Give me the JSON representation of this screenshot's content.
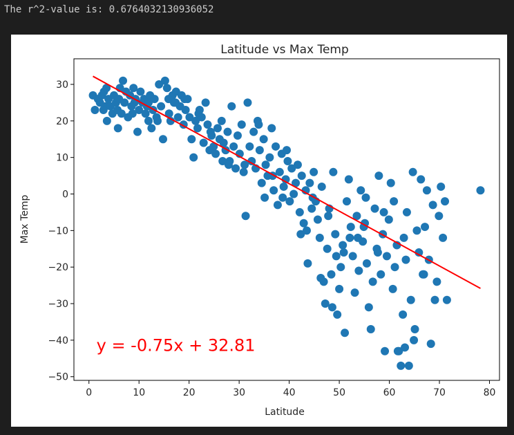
{
  "output": {
    "text": "The r^2-value is: 0.6764032130936052"
  },
  "chart_data": {
    "type": "scatter",
    "title": "Latitude vs Max Temp",
    "xlabel": "Latitude",
    "ylabel": "Max Temp",
    "xlim": [
      -3,
      82
    ],
    "ylim": [
      -51,
      37
    ],
    "xticks": [
      0,
      10,
      20,
      30,
      40,
      50,
      60,
      70,
      80
    ],
    "yticks": [
      -50,
      -40,
      -30,
      -20,
      -10,
      0,
      10,
      20,
      30
    ],
    "grid": false,
    "point_color": "#1f77b4",
    "regression": {
      "slope": -0.75,
      "intercept": 32.81,
      "x_range": [
        0.8,
        78.2
      ],
      "color": "#ff0000"
    },
    "annotation": {
      "text": "y = -0.75x + 32.81",
      "x": 1.5,
      "y": -43,
      "color": "#ff0000"
    },
    "points": [
      [
        0.8,
        27
      ],
      [
        1.2,
        23
      ],
      [
        1.8,
        26
      ],
      [
        2.2,
        25
      ],
      [
        2.6,
        27
      ],
      [
        3.0,
        28
      ],
      [
        3.3,
        24
      ],
      [
        3.6,
        20
      ],
      [
        3.9,
        26
      ],
      [
        4.3,
        24
      ],
      [
        4.7,
        22
      ],
      [
        5.0,
        27
      ],
      [
        5.4,
        25
      ],
      [
        5.7,
        23
      ],
      [
        6.0,
        26
      ],
      [
        6.2,
        29
      ],
      [
        6.5,
        22
      ],
      [
        6.8,
        31
      ],
      [
        7.1,
        25
      ],
      [
        7.4,
        28
      ],
      [
        7.8,
        21
      ],
      [
        8.2,
        27
      ],
      [
        8.5,
        24
      ],
      [
        8.9,
        29
      ],
      [
        9.3,
        26
      ],
      [
        9.7,
        17
      ],
      [
        10.0,
        23
      ],
      [
        10.3,
        28
      ],
      [
        10.7,
        25
      ],
      [
        11.0,
        26
      ],
      [
        11.3,
        22
      ],
      [
        11.6,
        24
      ],
      [
        11.9,
        20
      ],
      [
        12.2,
        27
      ],
      [
        12.5,
        18
      ],
      [
        12.8,
        23
      ],
      [
        13.1,
        26
      ],
      [
        13.5,
        21
      ],
      [
        14.0,
        30
      ],
      [
        14.4,
        24
      ],
      [
        14.8,
        15
      ],
      [
        15.2,
        31
      ],
      [
        15.6,
        29
      ],
      [
        16.0,
        22
      ],
      [
        16.3,
        20
      ],
      [
        16.7,
        27
      ],
      [
        17.0,
        25
      ],
      [
        17.4,
        28
      ],
      [
        17.8,
        21
      ],
      [
        18.2,
        24
      ],
      [
        18.5,
        27
      ],
      [
        18.9,
        19
      ],
      [
        19.3,
        23
      ],
      [
        19.7,
        26
      ],
      [
        20.1,
        21
      ],
      [
        20.5,
        15
      ],
      [
        20.9,
        10
      ],
      [
        21.3,
        20
      ],
      [
        21.7,
        18
      ],
      [
        22.1,
        23
      ],
      [
        22.5,
        21
      ],
      [
        22.9,
        14
      ],
      [
        23.3,
        25
      ],
      [
        23.7,
        19
      ],
      [
        24.1,
        12
      ],
      [
        24.5,
        16
      ],
      [
        24.9,
        13
      ],
      [
        25.3,
        11
      ],
      [
        25.7,
        18
      ],
      [
        26.1,
        15
      ],
      [
        26.5,
        20
      ],
      [
        26.9,
        14
      ],
      [
        27.3,
        12
      ],
      [
        27.7,
        17
      ],
      [
        28.1,
        9
      ],
      [
        28.5,
        24
      ],
      [
        28.9,
        13
      ],
      [
        29.3,
        7
      ],
      [
        29.7,
        16
      ],
      [
        30.1,
        11
      ],
      [
        30.5,
        19
      ],
      [
        30.9,
        6
      ],
      [
        31.3,
        -6
      ],
      [
        31.7,
        25
      ],
      [
        32.1,
        13
      ],
      [
        32.5,
        9
      ],
      [
        32.9,
        17
      ],
      [
        33.3,
        7
      ],
      [
        33.7,
        20
      ],
      [
        34.1,
        12
      ],
      [
        34.5,
        3
      ],
      [
        34.9,
        15
      ],
      [
        35.3,
        8
      ],
      [
        35.7,
        5
      ],
      [
        36.1,
        10
      ],
      [
        36.5,
        18
      ],
      [
        36.9,
        1
      ],
      [
        37.3,
        13
      ],
      [
        37.7,
        -3
      ],
      [
        38.1,
        6
      ],
      [
        38.5,
        11
      ],
      [
        38.9,
        2
      ],
      [
        39.3,
        4
      ],
      [
        39.7,
        9
      ],
      [
        40.1,
        -2
      ],
      [
        40.5,
        7
      ],
      [
        40.9,
        0
      ],
      [
        41.3,
        3
      ],
      [
        41.7,
        8
      ],
      [
        42.1,
        -5
      ],
      [
        42.5,
        5
      ],
      [
        42.9,
        -8
      ],
      [
        43.3,
        1
      ],
      [
        43.7,
        -19
      ],
      [
        44.1,
        3
      ],
      [
        44.5,
        -4
      ],
      [
        44.9,
        6
      ],
      [
        45.3,
        -2
      ],
      [
        45.7,
        -7
      ],
      [
        46.1,
        -12
      ],
      [
        46.5,
        2
      ],
      [
        46.9,
        -24
      ],
      [
        47.2,
        -30
      ],
      [
        47.6,
        -15
      ],
      [
        48.0,
        -4
      ],
      [
        48.4,
        -22
      ],
      [
        48.8,
        6
      ],
      [
        49.2,
        -11
      ],
      [
        49.6,
        -33
      ],
      [
        50.0,
        -26
      ],
      [
        50.3,
        -20
      ],
      [
        50.7,
        -14
      ],
      [
        51.1,
        -38
      ],
      [
        51.5,
        -2
      ],
      [
        51.9,
        4
      ],
      [
        52.3,
        -9
      ],
      [
        52.7,
        -17
      ],
      [
        53.1,
        -27
      ],
      [
        53.5,
        -6
      ],
      [
        53.9,
        -21
      ],
      [
        54.3,
        1
      ],
      [
        54.7,
        -13
      ],
      [
        55.1,
        -8
      ],
      [
        55.5,
        -19
      ],
      [
        55.9,
        -31
      ],
      [
        56.3,
        -37
      ],
      [
        56.7,
        -24
      ],
      [
        57.1,
        -4
      ],
      [
        57.5,
        -15
      ],
      [
        57.9,
        5
      ],
      [
        58.3,
        -22
      ],
      [
        58.7,
        -11
      ],
      [
        59.1,
        -43
      ],
      [
        59.5,
        -17
      ],
      [
        59.9,
        -7
      ],
      [
        60.3,
        3
      ],
      [
        60.7,
        -26
      ],
      [
        61.1,
        -20
      ],
      [
        61.5,
        -14
      ],
      [
        61.9,
        -43
      ],
      [
        62.3,
        -47
      ],
      [
        62.7,
        -33
      ],
      [
        63.1,
        -42
      ],
      [
        63.5,
        -5
      ],
      [
        63.9,
        -47
      ],
      [
        64.3,
        -29
      ],
      [
        64.7,
        6
      ],
      [
        65.1,
        -37
      ],
      [
        65.5,
        -10
      ],
      [
        65.9,
        -16
      ],
      [
        66.3,
        4
      ],
      [
        66.7,
        -22
      ],
      [
        67.1,
        -9
      ],
      [
        67.5,
        1
      ],
      [
        67.9,
        -18
      ],
      [
        68.3,
        -41
      ],
      [
        68.7,
        -3
      ],
      [
        69.1,
        -29
      ],
      [
        69.5,
        -24
      ],
      [
        69.9,
        -6
      ],
      [
        70.3,
        2
      ],
      [
        70.7,
        -12
      ],
      [
        71.1,
        -2
      ],
      [
        71.5,
        -29
      ],
      [
        78.2,
        1
      ],
      [
        3.5,
        29
      ],
      [
        9.1,
        25
      ],
      [
        15.9,
        26
      ],
      [
        24.3,
        17
      ],
      [
        33.9,
        19
      ],
      [
        39.5,
        12
      ],
      [
        46.3,
        -23
      ],
      [
        52.1,
        -12
      ],
      [
        57.7,
        -16
      ],
      [
        63.3,
        -18
      ],
      [
        48.6,
        -31
      ],
      [
        53.7,
        -12
      ],
      [
        50.9,
        -16
      ],
      [
        42.3,
        -11
      ],
      [
        44.7,
        -1
      ],
      [
        36.7,
        5
      ],
      [
        27.9,
        8
      ],
      [
        19.1,
        26
      ],
      [
        11.9,
        25
      ],
      [
        5.8,
        18
      ],
      [
        60.9,
        -2
      ],
      [
        66.9,
        -22
      ],
      [
        58.9,
        -5
      ],
      [
        55.3,
        -1
      ],
      [
        49.4,
        -17
      ],
      [
        61.7,
        -43
      ],
      [
        64.9,
        -40
      ],
      [
        62.9,
        -12
      ],
      [
        54.9,
        -9
      ],
      [
        47.8,
        -6
      ],
      [
        43.5,
        -10
      ],
      [
        38.7,
        -1
      ],
      [
        35.1,
        -1
      ],
      [
        31.1,
        8
      ],
      [
        26.7,
        9
      ],
      [
        21.9,
        22
      ],
      [
        17.3,
        25
      ],
      [
        13.7,
        20
      ],
      [
        8.7,
        22
      ],
      [
        2.9,
        23
      ]
    ]
  }
}
